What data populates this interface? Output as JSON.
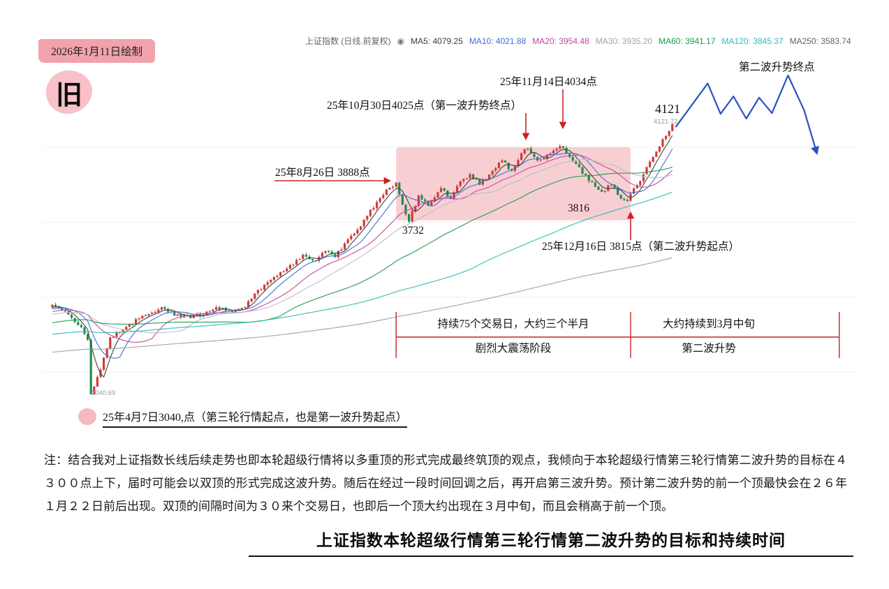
{
  "badge": {
    "date_label": "2026年1月11日绘制"
  },
  "stamp": {
    "text": "旧"
  },
  "legend": {
    "title": "上证指数 (日线.前复权)",
    "icon": "◉",
    "ma_items": [
      {
        "label": "MA5: 4079.25",
        "color": "#3c3c3c"
      },
      {
        "label": "MA10: 4021.88",
        "color": "#3a6fd8"
      },
      {
        "label": "MA20: 3954.48",
        "color": "#c2479f"
      },
      {
        "label": "MA30: 3935.20",
        "color": "#a0a4aa"
      },
      {
        "label": "MA60: 3941.17",
        "color": "#1d9a4b"
      },
      {
        "label": "MA120: 3845.37",
        "color": "#2fbcb4"
      },
      {
        "label": "MA250: 3583.74",
        "color": "#5a6472"
      }
    ]
  },
  "annotations": {
    "wave2_end": "第二波升势终点",
    "nov14": "25年11月14日4034点",
    "oct30": "25年10月30日4025点（第一波升势终点）",
    "latest_big": "4121",
    "latest_small": "4121.72",
    "aug26": "25年8月26日 3888点",
    "low_3732": "3732",
    "low_3816": "3816",
    "dec16": "25年12月16日 3815点（第二波升势起点）",
    "low_3040": "3040.69",
    "start_note": "25年4月7日3040,点（第三轮行情起点，也是第一波升势起点）"
  },
  "note": {
    "text": "注：结合我对上证指数长线后续走势也即本轮超级行情将以多重顶的形式完成最终筑顶的观点，我倾向于本轮超级行情第三轮行情第二波升势的目标在４３００点上下，届时可能会以双顶的形式完成这波升势。随后在经过一段时间回调之后，再开启第三波升势。预计第二波升势的前一个顶最快会在２６年１月２２日前后出现。双顶的间隔时间为３０来个交易日，也即后一个顶大约出现在３月中旬，而且会稍高于前一个顶。"
  },
  "footer": {
    "title": "上证指数本轮超级行情第三轮行情第二波升势的目标和持续时间"
  },
  "chart_data": {
    "type": "candlestick",
    "title": "上证指数 (日线.前复权)",
    "xlabel": "",
    "ylabel": "",
    "ylim": [
      3000,
      4350
    ],
    "grid": "faint-horizontal",
    "ma_values": {
      "MA5": 4079.25,
      "MA10": 4021.88,
      "MA20": 3954.48,
      "MA30": 3935.2,
      "MA60": 3941.17,
      "MA120": 3845.37,
      "MA250": 3583.74
    },
    "key_points": [
      {
        "label": "25年4月7日 3040点",
        "price": 3040.69,
        "role": "第三轮行情起点，也是第一波升势起点"
      },
      {
        "label": "25年8月26日 3888点",
        "price": 3888,
        "role": ""
      },
      {
        "label": "25年10月30日 4025点",
        "price": 4025,
        "role": "第一波升势终点"
      },
      {
        "label": "25年11月14日 4034点",
        "price": 4034,
        "role": ""
      },
      {
        "label": "25年12月16日 3815点",
        "price": 3815,
        "role": "第二波升势起点"
      },
      {
        "label": "4121",
        "price": 4121.72,
        "role": ""
      }
    ],
    "phases": [
      {
        "line1": "持续75个交易日，大约三个半月",
        "line2": "剧烈大震荡阶段",
        "from_index": 107,
        "to_index": 180
      },
      {
        "line1": "大约持续到3月中旬",
        "line2": "第二波升势",
        "from_index": 180,
        "to_index": 228
      }
    ],
    "colors": {
      "up": "#cf3b3b",
      "down": "#1e8e4e",
      "zone_pink": "#efa0a8",
      "annotation_red": "#cc2222",
      "projection_blue": "#2a52be",
      "gridline": "#efefef"
    },
    "crash_index": 12,
    "crash_low": 3040.69,
    "consolidation_box": {
      "start_index": 107,
      "end_index": 180,
      "price_top": 4030,
      "price_bottom": 3737
    },
    "gridline_prices": [
      4030,
      3730,
      3430,
      3130
    ],
    "history_anchors": [
      [
        -250,
        3060
      ],
      [
        -160,
        3180
      ],
      [
        -60,
        3260
      ],
      [
        -1,
        3390
      ]
    ],
    "price_anchors": [
      [
        0,
        3400
      ],
      [
        5,
        3360
      ],
      [
        9,
        3310
      ],
      [
        11,
        3260
      ],
      [
        12,
        3042
      ],
      [
        15,
        3140
      ],
      [
        18,
        3270
      ],
      [
        22,
        3300
      ],
      [
        27,
        3345
      ],
      [
        34,
        3390
      ],
      [
        40,
        3350
      ],
      [
        47,
        3360
      ],
      [
        51,
        3390
      ],
      [
        55,
        3375
      ],
      [
        60,
        3390
      ],
      [
        63,
        3445
      ],
      [
        67,
        3490
      ],
      [
        71,
        3530
      ],
      [
        75,
        3560
      ],
      [
        78,
        3600
      ],
      [
        82,
        3575
      ],
      [
        85,
        3615
      ],
      [
        88,
        3590
      ],
      [
        91,
        3645
      ],
      [
        95,
        3700
      ],
      [
        98,
        3755
      ],
      [
        101,
        3810
      ],
      [
        104,
        3860
      ],
      [
        107,
        3888
      ],
      [
        109,
        3800
      ],
      [
        111,
        3732
      ],
      [
        114,
        3838
      ],
      [
        117,
        3796
      ],
      [
        121,
        3866
      ],
      [
        124,
        3824
      ],
      [
        127,
        3894
      ],
      [
        130,
        3922
      ],
      [
        133,
        3880
      ],
      [
        137,
        3936
      ],
      [
        140,
        3977
      ],
      [
        143,
        3936
      ],
      [
        146,
        4005
      ],
      [
        148,
        4025
      ],
      [
        151,
        3977
      ],
      [
        155,
        4005
      ],
      [
        158,
        4034
      ],
      [
        161,
        3991
      ],
      [
        164,
        3950
      ],
      [
        167,
        3894
      ],
      [
        171,
        3852
      ],
      [
        174,
        3880
      ],
      [
        177,
        3824
      ],
      [
        179,
        3815
      ],
      [
        181,
        3866
      ],
      [
        183,
        3894
      ],
      [
        185,
        3950
      ],
      [
        187,
        3991
      ],
      [
        189,
        4033
      ],
      [
        191,
        4075
      ],
      [
        193,
        4121.72
      ]
    ],
    "projection": [
      [
        194,
        4110
      ],
      [
        204,
        4285
      ],
      [
        208,
        4163
      ],
      [
        212,
        4233
      ],
      [
        216,
        4144
      ],
      [
        220,
        4228
      ],
      [
        224,
        4166
      ],
      [
        229,
        4317
      ],
      [
        234,
        4178
      ],
      [
        238,
        4005
      ]
    ],
    "ma_lines": [
      {
        "window": 5,
        "color": "#3c3c3c"
      },
      {
        "window": 10,
        "color": "#3a6fd8"
      },
      {
        "window": 20,
        "color": "#c2479f"
      },
      {
        "window": 30,
        "color": "#b9bec4"
      },
      {
        "window": 60,
        "color": "#1d9a4b"
      },
      {
        "window": 120,
        "color": "#2fbcb4"
      },
      {
        "window": 250,
        "color": "#9aa0a6"
      }
    ]
  }
}
